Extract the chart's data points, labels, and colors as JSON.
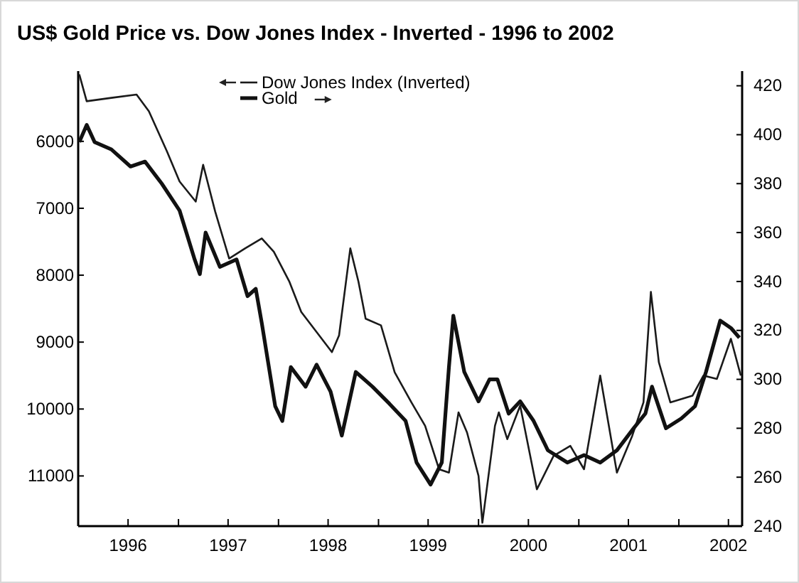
{
  "chart_data": {
    "type": "line",
    "title": "US$ Gold Price vs. Dow Jones Index - Inverted - 1996 to 2002",
    "xlim": [
      "1996-01-01",
      "2002-08-20"
    ],
    "xticks": [
      {
        "value": "1996-07-01",
        "label": "1996"
      },
      {
        "value": "1997-07-01",
        "label": "1997"
      },
      {
        "value": "1998-07-01",
        "label": "1998"
      },
      {
        "value": "1999-07-01",
        "label": "1999"
      },
      {
        "value": "2000-07-01",
        "label": "2000"
      },
      {
        "value": "2001-07-01",
        "label": "2001"
      },
      {
        "value": "2002-07-01",
        "label": "2002"
      },
      {
        "value": "1997-01-01",
        "label": null
      },
      {
        "value": "1998-01-01",
        "label": null
      },
      {
        "value": "1999-01-01",
        "label": null
      },
      {
        "value": "2000-01-01",
        "label": null
      },
      {
        "value": "2001-01-01",
        "label": null
      },
      {
        "value": "2002-01-01",
        "label": null
      }
    ],
    "ylim": [
      11750,
      4950
    ],
    "yticks": [
      6000,
      7000,
      8000,
      9000,
      10000,
      11000
    ],
    "y2lim": [
      240,
      426
    ],
    "y2ticks": [
      240,
      260,
      280,
      300,
      320,
      340,
      360,
      380,
      400,
      420
    ],
    "legend": "top",
    "grid": false,
    "line_style": "solid",
    "marker": "none",
    "series": [
      {
        "name": "Dow Jones Index (Inverted)",
        "color": "#1a1a1a",
        "axis": "y",
        "x": [
          "1996-01-05",
          "1996-02-01",
          "1996-05-01",
          "1996-08-01",
          "1996-09-15",
          "1996-11-20",
          "1997-01-05",
          "1997-03-05",
          "1997-04-01",
          "1997-05-15",
          "1997-07-05",
          "1997-09-01",
          "1997-11-01",
          "1997-12-15",
          "1998-02-10",
          "1998-03-25",
          "1998-05-20",
          "1998-07-15",
          "1998-08-10",
          "1998-09-20",
          "1998-10-20",
          "1998-11-15",
          "1999-01-10",
          "1999-03-01",
          "1999-05-01",
          "1999-06-20",
          "1999-08-10",
          "1999-09-15",
          "1999-10-20",
          "1999-11-20",
          "2000-01-01",
          "2000-01-15",
          "2000-03-01",
          "2000-03-15",
          "2000-04-15",
          "2000-06-01",
          "2000-08-01",
          "2000-10-01",
          "2000-12-01",
          "2001-01-20",
          "2001-03-20",
          "2001-05-20",
          "2001-07-15",
          "2001-08-25",
          "2001-09-21",
          "2001-10-20",
          "2001-12-01",
          "2002-02-20",
          "2002-04-01",
          "2002-05-20",
          "2002-07-10",
          "2002-08-15"
        ],
        "values": [
          5000,
          5400,
          5350,
          5300,
          5550,
          6150,
          6600,
          6900,
          6350,
          7050,
          7750,
          7600,
          7450,
          7650,
          8100,
          8550,
          8850,
          9150,
          8900,
          7600,
          8100,
          8650,
          8750,
          9450,
          9900,
          10250,
          10900,
          10950,
          10050,
          10350,
          11000,
          11700,
          10250,
          10050,
          10450,
          9950,
          11200,
          10700,
          10550,
          10900,
          9500,
          10950,
          10400,
          9900,
          8250,
          9300,
          9900,
          9800,
          9500,
          9550,
          8950,
          9500
        ]
      },
      {
        "name": "Gold",
        "color": "#111111",
        "axis": "y2",
        "x": [
          "1996-01-05",
          "1996-02-01",
          "1996-03-01",
          "1996-05-01",
          "1996-07-10",
          "1996-09-01",
          "1996-11-01",
          "1997-01-05",
          "1997-03-01",
          "1997-03-20",
          "1997-04-10",
          "1997-06-01",
          "1997-08-01",
          "1997-09-10",
          "1997-10-10",
          "1997-11-01",
          "1997-12-20",
          "1998-01-15",
          "1998-02-15",
          "1998-04-10",
          "1998-05-20",
          "1998-07-10",
          "1998-08-20",
          "1998-10-10",
          "1998-12-10",
          "1999-02-10",
          "1999-04-10",
          "1999-05-20",
          "1999-07-10",
          "1999-08-20",
          "1999-09-15",
          "1999-10-01",
          "1999-11-10",
          "2000-01-01",
          "2000-02-10",
          "2000-03-10",
          "2000-04-20",
          "2000-06-01",
          "2000-07-20",
          "2000-09-10",
          "2000-11-20",
          "2001-01-20",
          "2001-03-20",
          "2001-05-20",
          "2001-07-20",
          "2001-09-01",
          "2001-09-25",
          "2001-11-15",
          "2002-01-10",
          "2002-03-01",
          "2002-04-10",
          "2002-06-01",
          "2002-07-10",
          "2002-08-10"
        ],
        "values": [
          397,
          404,
          397,
          394,
          387,
          389,
          380,
          369,
          349,
          343,
          360,
          346,
          349,
          334,
          337,
          323,
          289,
          283,
          305,
          297,
          306,
          295,
          277,
          303,
          297,
          290,
          283,
          266,
          257,
          266,
          305,
          326,
          303,
          291,
          300,
          300,
          286,
          291,
          283,
          271,
          266,
          269,
          266,
          271,
          280,
          286,
          297,
          280,
          284,
          289,
          303,
          324,
          321,
          317
        ]
      }
    ]
  }
}
